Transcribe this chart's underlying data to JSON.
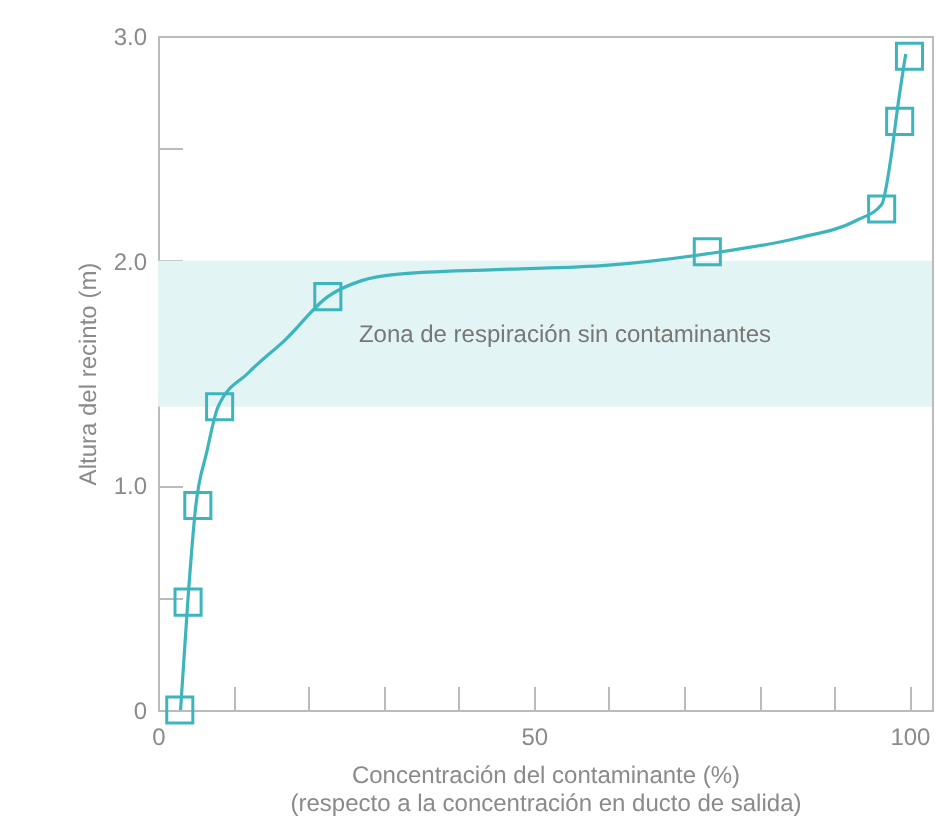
{
  "chart_data": {
    "type": "scatter",
    "xlabel": "Concentración del contaminante (%)\n(respecto a la concentración en ducto de salida)",
    "ylabel": "Altura del recinto (m)",
    "xlim": [
      0,
      103
    ],
    "xticks": [
      0,
      {
        "value": 10,
        "label": null
      },
      {
        "value": 20,
        "label": null
      },
      {
        "value": 30,
        "label": null
      },
      {
        "value": 40,
        "label": null
      },
      50,
      {
        "value": 60,
        "label": null
      },
      {
        "value": 70,
        "label": null
      },
      {
        "value": 80,
        "label": null
      },
      {
        "value": 90,
        "label": null
      },
      100
    ],
    "ylim": [
      0,
      3.0
    ],
    "yticks": [
      0,
      {
        "value": 0.5,
        "label": null
      },
      {
        "value": 1.0,
        "label": "1.0"
      },
      {
        "value": 1.5,
        "label": null
      },
      {
        "value": 2.0,
        "label": "2.0"
      },
      {
        "value": 2.5,
        "label": null
      },
      {
        "value": 3.0,
        "label": "3.0"
      }
    ],
    "grid": false,
    "series": [
      {
        "type": "line",
        "color": "#3db5bc",
        "marker": "none",
        "line_style": "solid",
        "x": [
          3,
          4,
          5,
          6.5,
          8,
          12,
          17,
          22.6,
          27,
          32,
          45,
          60,
          73,
          85,
          93,
          96.3,
          97.5,
          98.5,
          99.5
        ],
        "values": [
          0,
          0.5,
          0.9,
          1.15,
          1.35,
          1.5,
          1.65,
          1.84,
          1.91,
          1.94,
          1.96,
          1.98,
          2.03,
          2.1,
          2.18,
          2.25,
          2.45,
          2.7,
          2.92
        ]
      },
      {
        "color": "#3db5bc",
        "marker": "square",
        "x": [
          2.9,
          4.0,
          5.3,
          8.2,
          22.6,
          73.1,
          96.3,
          98.7,
          100
        ],
        "values": [
          0,
          0.48,
          0.91,
          1.35,
          1.84,
          2.04,
          2.23,
          2.62,
          2.91
        ]
      }
    ],
    "bands": [
      {
        "axis": "y",
        "from": 1.35,
        "to": 2.0,
        "label": "Zona de respiración sin contaminantes",
        "color": "#e3f4f5"
      }
    ]
  }
}
